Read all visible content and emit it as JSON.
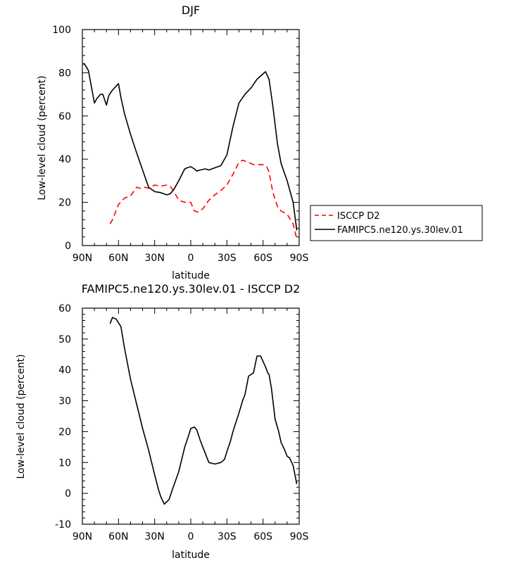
{
  "chart_data": [
    {
      "type": "line",
      "title": "DJF",
      "xlabel": "latitude",
      "ylabel": "Low-level cloud (percent)",
      "xlim": [
        -90,
        90
      ],
      "ylim": [
        0,
        100
      ],
      "x_tick_values": [
        -90,
        -60,
        -30,
        0,
        30,
        60,
        90
      ],
      "x_tick_labels": [
        "90N",
        "60N",
        "30N",
        "0",
        "30S",
        "60S",
        "90S"
      ],
      "y_tick_values": [
        0,
        20,
        40,
        60,
        80,
        100
      ],
      "y_tick_labels": [
        "0",
        "20",
        "40",
        "60",
        "80",
        "100"
      ],
      "legend_position": "right",
      "series": [
        {
          "name": "ISCCP D2",
          "color": "#ff0000",
          "style": "dashed",
          "x": [
            -67,
            -65,
            -60,
            -55,
            -50,
            -45,
            -42,
            -38,
            -35,
            -30,
            -25,
            -20,
            -17,
            -14,
            -10,
            -5,
            0,
            3,
            6,
            10,
            15,
            20,
            25,
            30,
            35,
            40,
            43,
            48,
            52,
            56,
            60,
            63,
            65,
            68,
            72,
            75,
            80,
            85,
            88
          ],
          "y": [
            10,
            12,
            19,
            22,
            23,
            27,
            26.5,
            27,
            26.5,
            28,
            27.5,
            28,
            27.5,
            25,
            21,
            20,
            20,
            16,
            15.5,
            17,
            21,
            23.5,
            25.5,
            28,
            33,
            38.5,
            39.5,
            38.5,
            37.5,
            37.5,
            37.5,
            36.5,
            34,
            25,
            18,
            16,
            14.5,
            10,
            3
          ]
        },
        {
          "name": "FAMIPC5.ne120.ys.30lev.01",
          "color": "#000000",
          "style": "solid",
          "x": [
            -89,
            -87,
            -85,
            -80,
            -78,
            -75,
            -73,
            -70,
            -68,
            -65,
            -60,
            -58,
            -55,
            -50,
            -45,
            -40,
            -35,
            -30,
            -25,
            -20,
            -17,
            -14,
            -10,
            -5,
            -3,
            0,
            3,
            5,
            8,
            12,
            15,
            20,
            25,
            30,
            35,
            40,
            45,
            50,
            55,
            60,
            62,
            65,
            68,
            72,
            75,
            80,
            85,
            88
          ],
          "y": [
            84.5,
            83,
            81,
            66,
            68,
            70,
            70,
            65,
            69.5,
            72,
            75,
            68.5,
            61,
            51.5,
            43,
            35,
            27,
            25,
            24.5,
            23.5,
            24,
            26,
            30,
            35.5,
            36,
            36.5,
            35.5,
            34.5,
            35,
            35.5,
            35,
            36,
            37,
            42,
            55,
            66,
            70,
            73,
            77,
            79.5,
            80.5,
            77,
            65,
            47,
            38,
            30,
            20,
            7
          ]
        }
      ]
    },
    {
      "type": "line",
      "title": "FAMIPC5.ne120.ys.30lev.01 - ISCCP D2",
      "xlabel": "latitude",
      "ylabel": "Low-level cloud (percent)",
      "xlim": [
        -90,
        90
      ],
      "ylim": [
        -10,
        60
      ],
      "x_tick_values": [
        -90,
        -60,
        -30,
        0,
        30,
        60,
        90
      ],
      "x_tick_labels": [
        "90N",
        "60N",
        "30N",
        "0",
        "30S",
        "60S",
        "90S"
      ],
      "y_tick_values": [
        -10,
        0,
        10,
        20,
        30,
        40,
        50,
        60
      ],
      "y_tick_labels": [
        "-10",
        "0",
        "10",
        "20",
        "30",
        "40",
        "50",
        "60"
      ],
      "series": [
        {
          "name": "FAMIPC5.ne120.ys.30lev.01 - ISCCP D2",
          "color": "#000000",
          "style": "solid",
          "x": [
            -67,
            -65,
            -62,
            -58,
            -55,
            -50,
            -45,
            -40,
            -35,
            -30,
            -27,
            -25,
            -22,
            -18,
            -15,
            -10,
            -5,
            -2,
            0,
            3,
            5,
            8,
            12,
            15,
            20,
            25,
            28,
            30,
            33,
            35,
            40,
            43,
            45,
            48,
            52,
            55,
            58,
            62,
            64,
            65,
            67,
            70,
            73,
            75,
            78,
            80,
            82,
            85,
            88
          ],
          "y": [
            55,
            57,
            56.5,
            54,
            47,
            37,
            29,
            21,
            14,
            6,
            1.5,
            -1,
            -3.5,
            -2,
            1.5,
            7,
            15,
            18.5,
            21,
            21.5,
            20.5,
            17,
            13,
            10,
            9.5,
            10,
            11,
            13.5,
            17,
            20,
            26,
            30,
            32,
            38,
            39,
            44.5,
            44.5,
            41,
            39,
            38.5,
            34,
            24,
            20,
            16.5,
            14,
            12,
            11.5,
            9,
            3
          ]
        }
      ]
    }
  ]
}
